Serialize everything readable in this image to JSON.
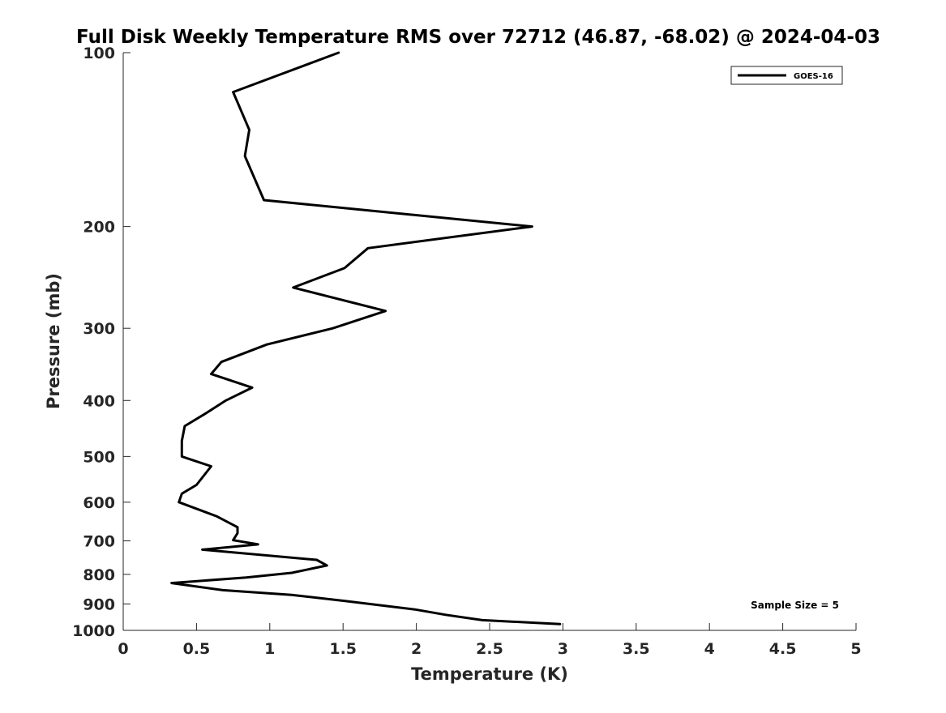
{
  "chart_data": {
    "type": "line",
    "title": "Full Disk Weekly Temperature RMS over 72712 (46.87, -68.02) @ 2024-04-03",
    "xlabel": "Temperature (K)",
    "ylabel": "Pressure (mb)",
    "xlim": [
      0,
      5
    ],
    "ylim": [
      100,
      1000
    ],
    "yscale": "log",
    "y_reversed": true,
    "xticks": [
      "0",
      "0.5",
      "1",
      "1.5",
      "2",
      "2.5",
      "3",
      "3.5",
      "4",
      "4.5",
      "5"
    ],
    "xtick_values": [
      0,
      0.5,
      1,
      1.5,
      2,
      2.5,
      3,
      3.5,
      4,
      4.5,
      5
    ],
    "yticks": [
      "100",
      "200",
      "300",
      "400",
      "500",
      "600",
      "700",
      "800",
      "900",
      "1000"
    ],
    "ytick_values": [
      100,
      200,
      300,
      400,
      500,
      600,
      700,
      800,
      900,
      1000
    ],
    "grid": false,
    "legend_position": "top-right",
    "annotation": "Sample Size = 5",
    "series": [
      {
        "name": "GOES-16",
        "color": "#000000",
        "x": [
          1.47,
          0.75,
          0.86,
          0.83,
          0.96,
          2.79,
          1.67,
          1.51,
          1.16,
          1.79,
          1.43,
          0.98,
          0.67,
          0.6,
          0.88,
          0.7,
          0.57,
          0.42,
          0.4,
          0.4,
          0.6,
          0.5,
          0.4,
          0.38,
          0.64,
          0.78,
          0.78,
          0.75,
          0.92,
          0.54,
          1.32,
          1.39,
          1.15,
          0.84,
          0.33,
          0.68,
          1.15,
          1.52,
          1.99,
          2.2,
          2.45,
          2.98
        ],
        "y": [
          100,
          117,
          136,
          151,
          180,
          200,
          218,
          236,
          255,
          280,
          300,
          320,
          343,
          360,
          380,
          400,
          420,
          443,
          470,
          500,
          520,
          560,
          580,
          600,
          635,
          663,
          679,
          698,
          710,
          725,
          755,
          772,
          795,
          810,
          828,
          852,
          868,
          890,
          920,
          940,
          960,
          975
        ]
      }
    ]
  }
}
